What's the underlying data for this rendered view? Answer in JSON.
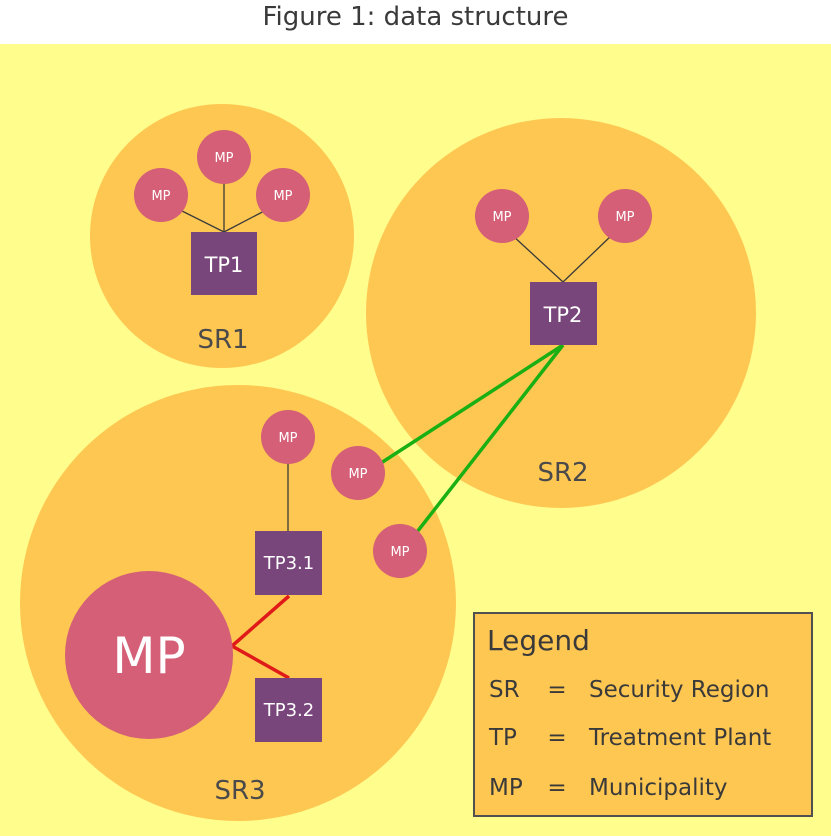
{
  "title": "Figure 1: data structure",
  "colors": {
    "background": "#fffd8c",
    "region_fill": "#fec752",
    "municipality_fill": "#d45f76",
    "plant_fill": "#78467a",
    "edge_default": "#3a3a3a",
    "edge_green": "#1aaf12",
    "edge_red": "#e01a18",
    "text_dark": "#4a4a4a",
    "text_light": "#ffffff"
  },
  "regions": [
    {
      "id": "sr1",
      "label": "SR1"
    },
    {
      "id": "sr2",
      "label": "SR2"
    },
    {
      "id": "sr3",
      "label": "SR3"
    }
  ],
  "plants": [
    {
      "id": "tp1",
      "label": "TP1"
    },
    {
      "id": "tp2",
      "label": "TP2"
    },
    {
      "id": "tp31",
      "label": "TP3.1"
    },
    {
      "id": "tp32",
      "label": "TP3.2"
    }
  ],
  "municipalities": [
    {
      "id": "mp_sr1_top",
      "label": "MP"
    },
    {
      "id": "mp_sr1_left",
      "label": "MP"
    },
    {
      "id": "mp_sr1_right",
      "label": "MP"
    },
    {
      "id": "mp_sr2_left",
      "label": "MP"
    },
    {
      "id": "mp_sr2_right",
      "label": "MP"
    },
    {
      "id": "mp_sr3_top",
      "label": "MP"
    },
    {
      "id": "mp_sr3_mid",
      "label": "MP"
    },
    {
      "id": "mp_sr3_low",
      "label": "MP"
    },
    {
      "id": "mp_sr3_big",
      "label": "MP"
    }
  ],
  "legend": {
    "title": "Legend",
    "entries": [
      {
        "abbr": "SR",
        "eq": "=",
        "meaning": "Security Region"
      },
      {
        "abbr": "TP",
        "eq": "=",
        "meaning": "Treatment Plant"
      },
      {
        "abbr": "MP",
        "eq": "=",
        "meaning": "Municipality"
      }
    ]
  }
}
